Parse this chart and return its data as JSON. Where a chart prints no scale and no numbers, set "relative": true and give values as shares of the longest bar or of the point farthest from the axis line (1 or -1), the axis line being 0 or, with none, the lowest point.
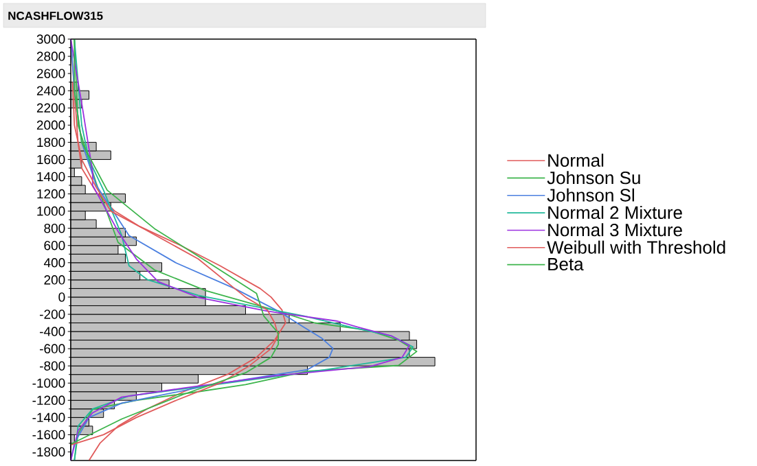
{
  "chart_data": {
    "type": "histogram",
    "title": "NCASHFLOW315",
    "orientation": "horizontal",
    "relative": true,
    "color": "#c0c0c0",
    "bins": [
      -1900,
      -1800,
      -1700,
      -1600,
      -1500,
      -1400,
      -1300,
      -1200,
      -1100,
      -1000,
      -900,
      -800,
      -700,
      -600,
      -500,
      -400,
      -300,
      -200,
      -100,
      0,
      100,
      200,
      300,
      400,
      500,
      600,
      700,
      800,
      900,
      1000,
      1100,
      1200,
      1300,
      1400,
      1500,
      1600,
      1700,
      1800,
      1900,
      2000,
      2100,
      2200,
      2300,
      2400,
      2500
    ],
    "values": [
      0,
      0,
      0.01,
      0.06,
      0.05,
      0.09,
      0.12,
      0.18,
      0.25,
      0.35,
      0.65,
      1,
      0.93,
      0.95,
      0.93,
      0.74,
      0.6,
      0.48,
      0.37,
      0.37,
      0.27,
      0.19,
      0.25,
      0.15,
      0.13,
      0.18,
      0.15,
      0.07,
      0.04,
      0.11,
      0.15,
      0.04,
      0.03,
      0.01,
      0.03,
      0.11,
      0.07,
      0,
      0,
      0,
      0,
      0.03,
      0.05,
      0.02
    ],
    "ylim": [
      -1900,
      3000
    ],
    "yticks": [
      -1800,
      -1600,
      -1400,
      -1200,
      -1000,
      -800,
      -600,
      -400,
      -200,
      0,
      200,
      400,
      600,
      800,
      1000,
      1200,
      1400,
      1600,
      1800,
      2000,
      2200,
      2400,
      2600,
      2800,
      3000
    ],
    "tick_labels": "y",
    "legend": "right",
    "series": [
      {
        "type": "line",
        "name": "Normal",
        "color": "#e05a5a",
        "x": [
          -1900,
          -1700,
          -1500,
          -1300,
          -1100,
          -900,
          -700,
          -500,
          -300,
          -150,
          0,
          100,
          364,
          604,
          820,
          1003,
          1219,
          1500,
          1800,
          2400,
          3000
        ],
        "values": [
          0.05,
          0.08,
          0.13,
          0.21,
          0.31,
          0.43,
          0.51,
          0.56,
          0.59,
          0.58,
          0.55,
          0.52,
          0.41,
          0.3,
          0.19,
          0.12,
          0.07,
          0.03,
          0.02,
          0.01,
          0
        ]
      },
      {
        "type": "line",
        "name": "Johnson Su",
        "color": "#3cb44b",
        "x": [
          -1900,
          -1590,
          -1305,
          -1200,
          -1100,
          -1018,
          -861,
          -795,
          -632,
          -500,
          -388,
          -300,
          -163,
          76,
          316,
          636,
          1323,
          2000,
          3000
        ],
        "values": [
          0.01,
          0.02,
          0.06,
          0.18,
          0.35,
          0.48,
          0.65,
          0.9,
          0.95,
          0.9,
          0.82,
          0.67,
          0.57,
          0.37,
          0.23,
          0.13,
          0.07,
          0.02,
          0.01
        ]
      },
      {
        "type": "line",
        "name": "Johnson Sl",
        "color": "#4a7fe0",
        "x": [
          -1900,
          -1700,
          -1400,
          -1233,
          -1018,
          -843,
          -700,
          -596,
          -480,
          -350,
          -163,
          100,
          396,
          716,
          1300,
          1800,
          2400,
          3000
        ],
        "values": [
          0,
          0.01,
          0.05,
          0.14,
          0.39,
          0.65,
          0.71,
          0.72,
          0.69,
          0.64,
          0.57,
          0.45,
          0.29,
          0.16,
          0.07,
          0.03,
          0.01,
          0
        ]
      },
      {
        "type": "line",
        "name": "Normal 2 Mixture",
        "color": "#20b89a",
        "x": [
          -1900,
          -1500,
          -1300,
          -1150,
          -1000,
          -850,
          -700,
          -580,
          -450,
          -350,
          -219,
          20,
          204,
          364,
          716,
          1243,
          1600,
          2000,
          2500,
          3000
        ],
        "values": [
          0.01,
          0.02,
          0.06,
          0.16,
          0.43,
          0.69,
          0.92,
          0.94,
          0.88,
          0.77,
          0.64,
          0.35,
          0.21,
          0.16,
          0.14,
          0.09,
          0.05,
          0.03,
          0.02,
          0.01
        ]
      },
      {
        "type": "line",
        "name": "Normal 3 Mixture",
        "color": "#9b30e0",
        "x": [
          -1900,
          -1553,
          -1345,
          -1163,
          -1057,
          -915,
          -809,
          -700,
          -561,
          -450,
          -350,
          -278,
          -163,
          -3,
          180,
          444,
          764,
          1300,
          1458,
          2257,
          3000
        ],
        "values": [
          0,
          0.02,
          0.06,
          0.14,
          0.31,
          0.56,
          0.82,
          0.91,
          0.93,
          0.88,
          0.79,
          0.73,
          0.54,
          0.35,
          0.24,
          0.18,
          0.13,
          0.06,
          0.06,
          0.03,
          0
        ]
      },
      {
        "type": "line",
        "name": "Weibull with Threshold",
        "color": "#e05a5a",
        "x": [
          -1720,
          -1600,
          -1400,
          -1200,
          -1000,
          -800,
          -600,
          -450,
          -300,
          -150,
          0,
          100,
          444,
          796,
          1000,
          1275,
          1600,
          2000,
          2500
        ],
        "values": [
          0,
          0.09,
          0.18,
          0.29,
          0.41,
          0.49,
          0.55,
          0.57,
          0.56,
          0.54,
          0.48,
          0.45,
          0.35,
          0.2,
          0.11,
          0.07,
          0.03,
          0.01,
          0.005
        ]
      },
      {
        "type": "line",
        "name": "Beta",
        "color": "#3cb44b",
        "x": [
          -1711,
          -1417,
          -1130,
          -880,
          -700,
          -550,
          -420,
          -219,
          44,
          396,
          796,
          1243,
          1800,
          2400,
          3000
        ],
        "values": [
          0,
          0.14,
          0.31,
          0.48,
          0.55,
          0.57,
          0.57,
          0.53,
          0.51,
          0.38,
          0.23,
          0.1,
          0.03,
          0.01,
          0.01
        ]
      }
    ]
  }
}
